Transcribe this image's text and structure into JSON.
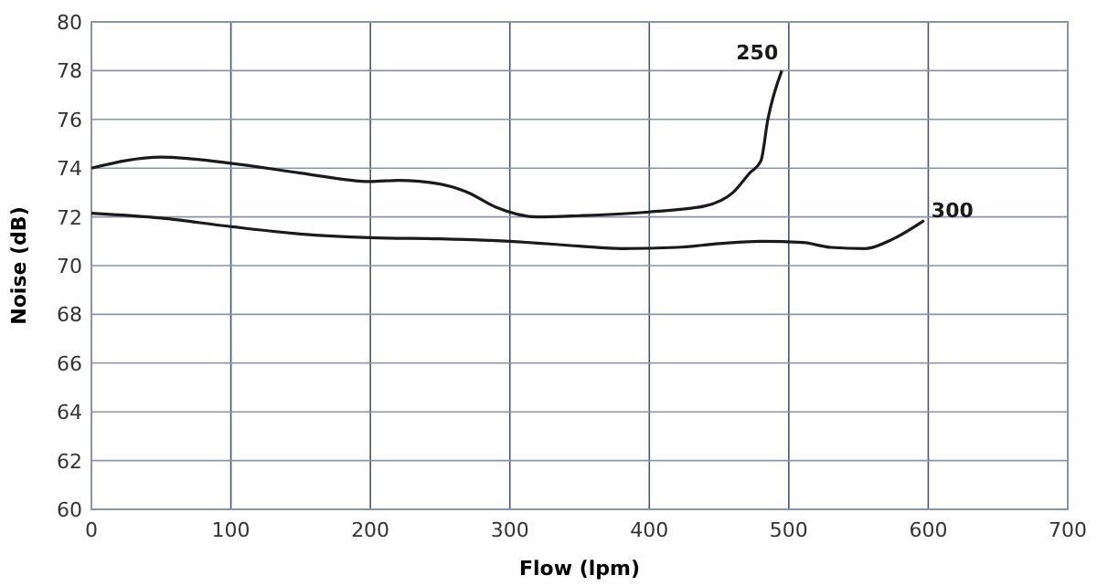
{
  "chart_data": {
    "type": "line",
    "xlabel": "Flow (lpm)",
    "ylabel": "Noise (dB)",
    "xlim": [
      0,
      700
    ],
    "xticks": [
      0,
      100,
      200,
      300,
      400,
      500,
      600,
      700
    ],
    "ylim": [
      60,
      80
    ],
    "yticks": [
      60,
      62,
      64,
      66,
      68,
      70,
      72,
      74,
      76,
      78,
      80
    ],
    "grid": true,
    "marker": "none",
    "line_style": "solid",
    "series": [
      {
        "name": "250",
        "color": "#1a1a1a",
        "x": [
          0,
          50,
          100,
          150,
          200,
          220,
          250,
          270,
          290,
          320,
          350,
          400,
          440,
          460,
          472,
          480,
          485,
          495
        ],
        "values": [
          74,
          74.45,
          74.2,
          73.8,
          73.45,
          73.5,
          73.35,
          73,
          72.4,
          72,
          72.05,
          72.2,
          72.45,
          73,
          73.8,
          74.3,
          76,
          78
        ]
      },
      {
        "name": "300",
        "color": "#1a1a1a",
        "x": [
          0,
          50,
          100,
          150,
          200,
          250,
          300,
          350,
          380,
          420,
          450,
          480,
          510,
          530,
          555,
          575,
          597
        ],
        "values": [
          72.15,
          71.95,
          71.6,
          71.3,
          71.15,
          71.1,
          71,
          70.8,
          70.7,
          70.75,
          70.9,
          71,
          70.95,
          70.75,
          70.7,
          71.1,
          71.85
        ]
      }
    ]
  }
}
